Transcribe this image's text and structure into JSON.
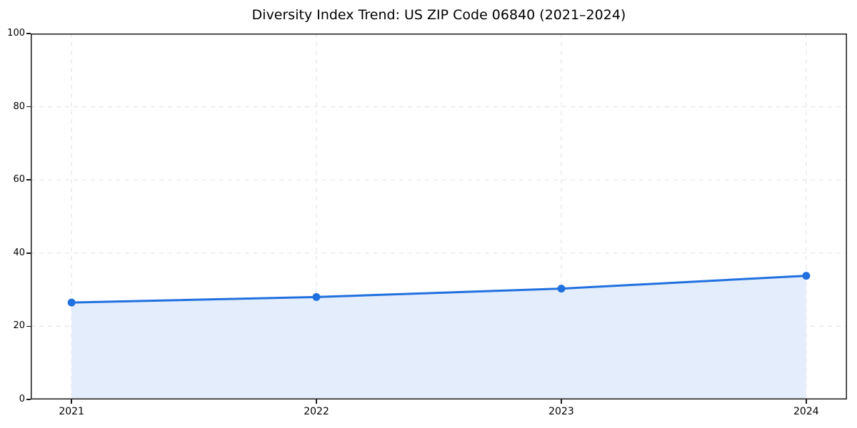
{
  "chart_data": {
    "type": "area",
    "title": "Diversity Index Trend: US ZIP Code 06840 (2021–2024)",
    "xlabel": "",
    "ylabel": "",
    "x": [
      2021,
      2022,
      2023,
      2024
    ],
    "xticklabels": [
      "2021",
      "2022",
      "2023",
      "2024"
    ],
    "series": [
      {
        "name": "Diversity Index",
        "values": [
          26.5,
          28.0,
          30.3,
          33.8
        ]
      }
    ],
    "ylim": [
      0,
      100
    ],
    "yticks": [
      0,
      20,
      40,
      60,
      80,
      100
    ],
    "x_margin_fraction": 0.05,
    "grid": true,
    "grid_style": "dashed",
    "legend": false,
    "colors": {
      "line": "#2170e0",
      "marker": "#2170e0",
      "fill": "#e3edfb",
      "grid": "#e5e5e5",
      "spine": "#1a1a1a",
      "background": "#ffffff",
      "text": "#000000"
    }
  }
}
